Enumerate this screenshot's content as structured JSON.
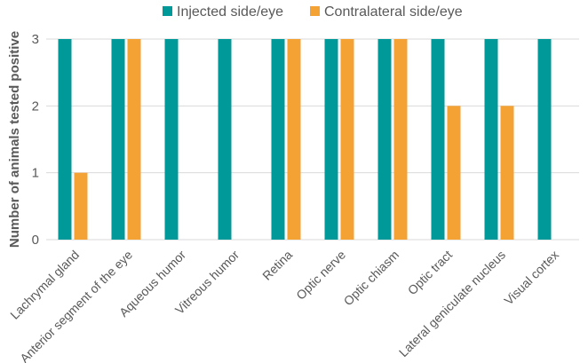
{
  "chart_data": {
    "type": "bar",
    "title": "",
    "xlabel": "",
    "ylabel": "Number of animals tested positive",
    "ylim": [
      0,
      3
    ],
    "yticks": [
      0,
      1,
      2,
      3
    ],
    "grid": true,
    "legend_position": "top",
    "categories": [
      "Lachrymal gland",
      "Anterior segment of the eye",
      "Aqueous humor",
      "Vitreous humor",
      "Retina",
      "Optic nerve",
      "Optic chiasm",
      "Optic tract",
      "Lateral geniculate nucleus",
      "Visual cortex"
    ],
    "series": [
      {
        "name": "Injected side/eye",
        "color": "#009999",
        "values": [
          3,
          3,
          3,
          3,
          3,
          3,
          3,
          3,
          3,
          3
        ]
      },
      {
        "name": "Contralateral side/eye",
        "color": "#F4A233",
        "values": [
          1,
          3,
          0,
          0,
          3,
          3,
          3,
          2,
          2,
          0
        ]
      }
    ]
  }
}
